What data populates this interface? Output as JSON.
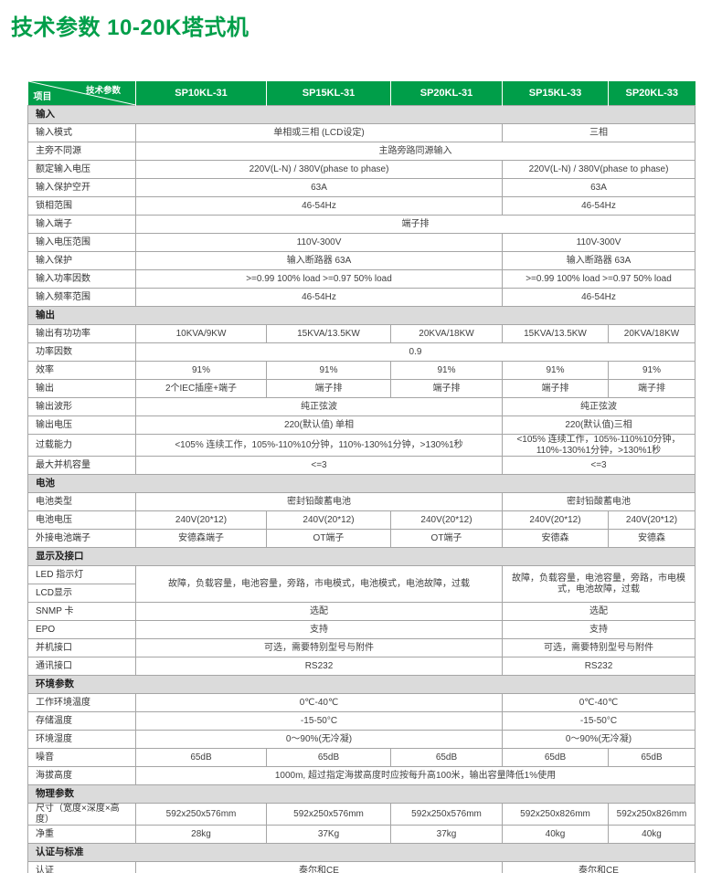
{
  "page": {
    "title": "技术参数 10-20K塔式机"
  },
  "colors": {
    "brand_green": "#009e49",
    "section_gray": "#dbdbdb",
    "border_gray": "#a5a5a5",
    "text_dark": "#3f3f3f"
  },
  "table": {
    "corner": {
      "top_label": "技术参数",
      "bottom_label": "项目"
    },
    "columns": [
      "SP10KL-31",
      "SP15KL-31",
      "SP20KL-31",
      "SP15KL-33",
      "SP20KL-33"
    ],
    "rows": [
      {
        "t": "sec",
        "label": "输入"
      },
      {
        "t": "row",
        "label": "输入模式",
        "cells": [
          {
            "v": "单相或三相 (LCD设定)",
            "cs": 3
          },
          {
            "v": "三相",
            "cs": 2
          }
        ]
      },
      {
        "t": "row",
        "label": "主旁不同源",
        "cells": [
          {
            "v": "主路旁路同源输入",
            "cs": 5
          }
        ]
      },
      {
        "t": "row",
        "label": "额定输入电压",
        "cells": [
          {
            "v": "220V(L-N) / 380V(phase to phase)",
            "cs": 3
          },
          {
            "v": "220V(L-N) / 380V(phase to phase)",
            "cs": 2
          }
        ]
      },
      {
        "t": "row",
        "label": "输入保护空开",
        "cells": [
          {
            "v": "63A",
            "cs": 3
          },
          {
            "v": "63A",
            "cs": 2
          }
        ]
      },
      {
        "t": "row",
        "label": "锁相范围",
        "cells": [
          {
            "v": "46-54Hz",
            "cs": 3
          },
          {
            "v": "46-54Hz",
            "cs": 2
          }
        ]
      },
      {
        "t": "row",
        "label": "输入端子",
        "cells": [
          {
            "v": "端子排",
            "cs": 5
          }
        ]
      },
      {
        "t": "row",
        "label": "输入电压范围",
        "cells": [
          {
            "v": "110V-300V",
            "cs": 3
          },
          {
            "v": "110V-300V",
            "cs": 2
          }
        ]
      },
      {
        "t": "row",
        "label": "输入保护",
        "cells": [
          {
            "v": "输入断路器 63A",
            "cs": 3
          },
          {
            "v": "输入断路器 63A",
            "cs": 2
          }
        ]
      },
      {
        "t": "row",
        "label": "输入功率因数",
        "cells": [
          {
            "v": ">=0.99 100% load >=0.97 50% load",
            "cs": 3
          },
          {
            "v": ">=0.99 100% load >=0.97 50% load",
            "cs": 2
          }
        ]
      },
      {
        "t": "row",
        "label": "输入频率范围",
        "cells": [
          {
            "v": "46-54Hz",
            "cs": 3
          },
          {
            "v": "46-54Hz",
            "cs": 2
          }
        ]
      },
      {
        "t": "sec",
        "label": "输出"
      },
      {
        "t": "row",
        "label": "输出有功功率",
        "cells": [
          {
            "v": "10KVA/9KW"
          },
          {
            "v": "15KVA/13.5KW"
          },
          {
            "v": "20KVA/18KW"
          },
          {
            "v": "15KVA/13.5KW"
          },
          {
            "v": "20KVA/18KW"
          }
        ]
      },
      {
        "t": "row",
        "label": "功率因数",
        "cells": [
          {
            "v": "0.9",
            "cs": 5
          }
        ]
      },
      {
        "t": "row",
        "label": "效率",
        "cells": [
          {
            "v": "91%"
          },
          {
            "v": "91%"
          },
          {
            "v": "91%"
          },
          {
            "v": "91%"
          },
          {
            "v": "91%"
          }
        ]
      },
      {
        "t": "row",
        "label": "输出",
        "cells": [
          {
            "v": "2个IEC插座+端子"
          },
          {
            "v": "端子排"
          },
          {
            "v": "端子排"
          },
          {
            "v": "端子排"
          },
          {
            "v": "端子排"
          }
        ]
      },
      {
        "t": "row",
        "label": "输出波形",
        "cells": [
          {
            "v": "纯正弦波",
            "cs": 3
          },
          {
            "v": "纯正弦波",
            "cs": 2
          }
        ]
      },
      {
        "t": "row",
        "label": "输出电压",
        "cells": [
          {
            "v": "220(默认值) 单相",
            "cs": 3
          },
          {
            "v": "220(默认值)三相",
            "cs": 2
          }
        ]
      },
      {
        "t": "row",
        "label": "过载能力",
        "cells": [
          {
            "v": "<105% 连续工作，105%-110%10分钟，110%-130%1分钟，>130%1秒",
            "cs": 3
          },
          {
            "v": "<105% 连续工作，105%-110%10分钟，110%-130%1分钟，>130%1秒",
            "cs": 2
          }
        ]
      },
      {
        "t": "row",
        "label": "最大并机容量",
        "cells": [
          {
            "v": "<=3",
            "cs": 3
          },
          {
            "v": "<=3",
            "cs": 2
          }
        ]
      },
      {
        "t": "sec",
        "label": "电池"
      },
      {
        "t": "row",
        "label": "电池类型",
        "cells": [
          {
            "v": "密封铅酸蓄电池",
            "cs": 3
          },
          {
            "v": "密封铅酸蓄电池",
            "cs": 2
          }
        ]
      },
      {
        "t": "row",
        "label": "电池电压",
        "cells": [
          {
            "v": "240V(20*12)"
          },
          {
            "v": "240V(20*12)"
          },
          {
            "v": "240V(20*12)"
          },
          {
            "v": "240V(20*12)"
          },
          {
            "v": "240V(20*12)"
          }
        ]
      },
      {
        "t": "row",
        "label": "外接电池端子",
        "cells": [
          {
            "v": "安德森端子"
          },
          {
            "v": "OT端子"
          },
          {
            "v": "OT端子"
          },
          {
            "v": "安德森"
          },
          {
            "v": "安德森"
          }
        ]
      },
      {
        "t": "sec",
        "label": "显示及接口"
      },
      {
        "t": "row",
        "label": "LED 指示灯",
        "cells": [
          {
            "v": "故障，负载容量，电池容量，旁路，市电模式，电池模式，电池故障，过载",
            "cs": 3,
            "rs": 2
          },
          {
            "v": "故障，负载容量，电池容量，旁路，市电模式，电池故障，过载",
            "cs": 2,
            "rs": 2
          }
        ]
      },
      {
        "t": "row",
        "label": "LCD显示",
        "cells": []
      },
      {
        "t": "row",
        "label": "SNMP 卡",
        "cells": [
          {
            "v": "选配",
            "cs": 3
          },
          {
            "v": "选配",
            "cs": 2
          }
        ]
      },
      {
        "t": "row",
        "label": "EPO",
        "cells": [
          {
            "v": "支持",
            "cs": 3
          },
          {
            "v": "支持",
            "cs": 2
          }
        ]
      },
      {
        "t": "row",
        "label": "并机接口",
        "cells": [
          {
            "v": "可选，需要特别型号与附件",
            "cs": 3
          },
          {
            "v": "可选，需要特别型号与附件",
            "cs": 2
          }
        ]
      },
      {
        "t": "row",
        "label": "通讯接口",
        "cells": [
          {
            "v": "RS232",
            "cs": 3
          },
          {
            "v": "RS232",
            "cs": 2
          }
        ]
      },
      {
        "t": "sec",
        "label": "环境参数"
      },
      {
        "t": "row",
        "label": "工作环境温度",
        "cells": [
          {
            "v": "0℃-40℃",
            "cs": 3
          },
          {
            "v": "0℃-40℃",
            "cs": 2
          }
        ]
      },
      {
        "t": "row",
        "label": "存储温度",
        "cells": [
          {
            "v": "-15-50°C",
            "cs": 3
          },
          {
            "v": "-15-50°C",
            "cs": 2
          }
        ]
      },
      {
        "t": "row",
        "label": "环境湿度",
        "cells": [
          {
            "v": "0～90%(无冷凝)",
            "cs": 3
          },
          {
            "v": "0～90%(无冷凝)",
            "cs": 2
          }
        ]
      },
      {
        "t": "row",
        "label": "噪音",
        "cells": [
          {
            "v": "65dB"
          },
          {
            "v": "65dB"
          },
          {
            "v": "65dB"
          },
          {
            "v": "65dB"
          },
          {
            "v": "65dB"
          }
        ]
      },
      {
        "t": "row",
        "label": "海拔高度",
        "cells": [
          {
            "v": "1000m, 超过指定海拔高度时应按每升高100米，输出容量降低1%使用",
            "cs": 5
          }
        ]
      },
      {
        "t": "sec",
        "label": "物理参数"
      },
      {
        "t": "row",
        "label": "尺寸（宽度×深度×高度）",
        "cells": [
          {
            "v": "592x250x576mm"
          },
          {
            "v": "592x250x576mm"
          },
          {
            "v": "592x250x576mm"
          },
          {
            "v": "592x250x826mm"
          },
          {
            "v": "592x250x826mm"
          }
        ]
      },
      {
        "t": "row",
        "label": "净重",
        "cells": [
          {
            "v": "28kg"
          },
          {
            "v": "37Kg"
          },
          {
            "v": "37kg"
          },
          {
            "v": "40kg"
          },
          {
            "v": "40kg"
          }
        ]
      },
      {
        "t": "sec",
        "label": "认证与标准"
      },
      {
        "t": "row",
        "label": "认证",
        "cells": [
          {
            "v": "泰尔和CE",
            "cs": 3
          },
          {
            "v": "泰尔和CE",
            "cs": 2
          }
        ]
      }
    ]
  }
}
